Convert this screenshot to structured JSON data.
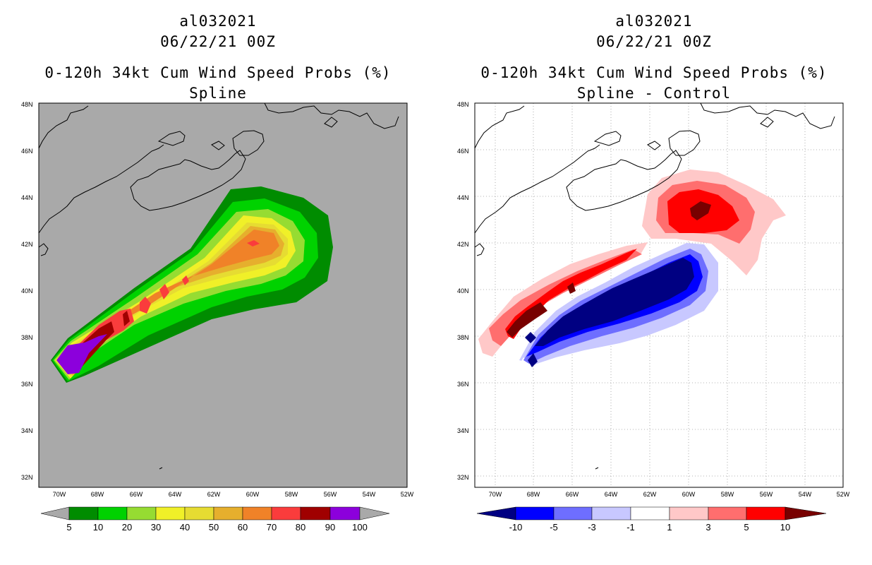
{
  "left_panel": {
    "storm_id": "al032021",
    "datetime": "06/22/21 00Z",
    "product": "0-120h 34kt Cum Wind Speed Probs (%)",
    "subtitle": "Spline",
    "background_color": "#a9a9a9",
    "colorbar": {
      "labels": [
        "5",
        "10",
        "20",
        "30",
        "40",
        "50",
        "60",
        "70",
        "80",
        "90",
        "100"
      ],
      "colors": [
        "#008c00",
        "#00d200",
        "#96dc32",
        "#f0f028",
        "#e6dc32",
        "#e6af2d",
        "#f08228",
        "#fa3c3c",
        "#a00000",
        "#8c00dc"
      ],
      "under_color": "#a9a9a9",
      "over_color": "#a9a9a9"
    }
  },
  "right_panel": {
    "storm_id": "al032021",
    "datetime": "06/22/21 00Z",
    "product": "0-120h 34kt Cum Wind Speed Probs (%)",
    "subtitle": "Spline - Control",
    "background_color": "#ffffff",
    "colorbar": {
      "labels": [
        "-10",
        "-5",
        "-3",
        "-1",
        "1",
        "3",
        "5",
        "10"
      ],
      "colors": [
        "#0000ff",
        "#6e6eff",
        "#c8c8ff",
        "#ffffff",
        "#ffc8c8",
        "#ff6e6e",
        "#ff0000"
      ],
      "under_color": "#000082",
      "over_color": "#780000"
    }
  },
  "axes": {
    "lat_labels": [
      "48N",
      "46N",
      "44N",
      "42N",
      "40N",
      "38N",
      "36N",
      "34N",
      "32N"
    ],
    "lon_labels": [
      "70W",
      "68W",
      "66W",
      "64W",
      "62W",
      "60W",
      "58W",
      "56W",
      "54W",
      "52W"
    ],
    "lat_range": [
      32,
      48
    ],
    "lon_range": [
      -70.5,
      -52
    ]
  }
}
